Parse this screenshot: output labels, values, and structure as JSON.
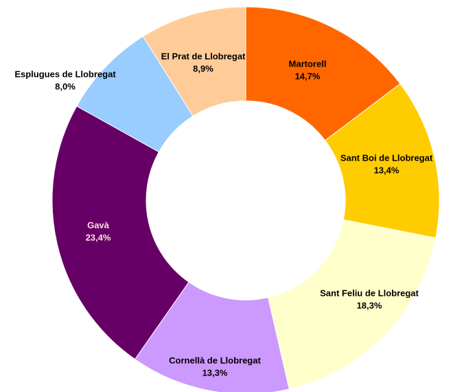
{
  "chart_data": {
    "type": "donut",
    "categories": [
      "Martorell",
      "Sant Boi de Llobregat",
      "Sant Feliu de Llobregat",
      "Cornellà de Llobregat",
      "Gavà",
      "Esplugues de Llobregat",
      "El Prat de Llobregat"
    ],
    "values": [
      14.7,
      13.4,
      18.3,
      13.3,
      23.4,
      8.0,
      8.9
    ],
    "value_labels": [
      "14,7%",
      "13,4%",
      "18,3%",
      "13,3%",
      "23,4%",
      "8,0%",
      "8,9%"
    ],
    "colors": [
      "#ff6600",
      "#ffcc00",
      "#ffffcc",
      "#cc99ff",
      "#660066",
      "#99ccff",
      "#ffcc99"
    ]
  }
}
